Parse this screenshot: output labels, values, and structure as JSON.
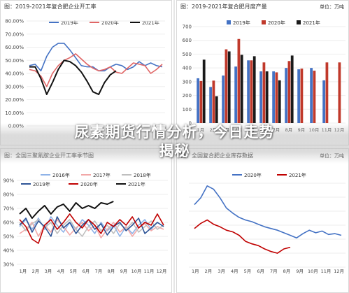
{
  "overlay": {
    "line1": "尿素期货行情分析，今日走势",
    "line2": "揭秘"
  },
  "colors": {
    "frame": "#d9d9d9",
    "text": "#333333",
    "grid": "#eeeeee"
  },
  "chart_data": [
    {
      "type": "line",
      "title": "图：2019-2021年复合肥企业开工率",
      "yticks": [
        "80.00%",
        "70.00%",
        "60.00%",
        "50.00%",
        "40.00%",
        "30.00%",
        "20.00%",
        "10.00%",
        "0.00%"
      ],
      "ylim": [
        0,
        80
      ],
      "legend_placement": "top",
      "series": [
        {
          "name": "2019年",
          "color": "#4472c4",
          "values": [
            46,
            47,
            42,
            53,
            60,
            63,
            63,
            58,
            52,
            46,
            45,
            45,
            42,
            42,
            45,
            47,
            46,
            43,
            45,
            49,
            46,
            48,
            46,
            45
          ]
        },
        {
          "name": "2020年",
          "color": "#e06666",
          "values": [
            43,
            42,
            38,
            30,
            40,
            46,
            50,
            52,
            55,
            51,
            47,
            44,
            42,
            43,
            45,
            41,
            40,
            44,
            48,
            47,
            46,
            40,
            43,
            47
          ]
        },
        {
          "name": "2021年",
          "color": "#111111",
          "values": [
            45,
            45,
            36,
            24,
            33,
            43,
            50,
            49,
            46,
            41,
            34,
            26,
            24,
            33,
            39,
            42,
            null,
            null,
            null,
            null,
            null,
            null,
            null,
            null
          ]
        }
      ]
    },
    {
      "type": "bar",
      "title": "图：2019-2021年复合肥月度产量",
      "unit": "单位：万吨",
      "categories": [
        "1月",
        "2月",
        "3月",
        "4月",
        "5月",
        "6月",
        "7月",
        "8月",
        "9月",
        "10月",
        "11月",
        "12月"
      ],
      "yticks": [
        "700",
        "600",
        "500",
        "400",
        "300",
        "200",
        "100",
        "0"
      ],
      "ylim": [
        0,
        700
      ],
      "legend_placement": "top",
      "series": [
        {
          "name": "2019年",
          "color": "#4472c4",
          "values": [
            325,
            262,
            345,
            410,
            455,
            375,
            375,
            400,
            390,
            400,
            310,
            0
          ]
        },
        {
          "name": "2020年",
          "color": "#c0392b",
          "values": [
            305,
            308,
            535,
            610,
            455,
            440,
            368,
            450,
            395,
            380,
            440,
            440
          ]
        },
        {
          "name": "2021年",
          "color": "#1a1a1a",
          "values": [
            460,
            195,
            520,
            495,
            485,
            375,
            310,
            490,
            0,
            0,
            0,
            0
          ]
        }
      ]
    },
    {
      "type": "line",
      "title": "图：全国三聚氰胺企业开工率季节图",
      "yticks": [
        "90%",
        "80%",
        "70%",
        "60%",
        "50%",
        "40%",
        "30%"
      ],
      "ylim": [
        30,
        90
      ],
      "xticks": [
        "1月",
        "2月",
        "3月",
        "4月",
        "5月",
        "6月",
        "7月",
        "8月",
        "9月",
        "10月",
        "11月",
        "12月"
      ],
      "legend_placement": "top",
      "series": [
        {
          "name": "2016年",
          "color": "#8fb3e8",
          "values": [
            57,
            62,
            55,
            63,
            55,
            64,
            58,
            53,
            60,
            55,
            62,
            58,
            52,
            60,
            54,
            58,
            50,
            57,
            52,
            58,
            62,
            55,
            60,
            57
          ]
        },
        {
          "name": "2017年",
          "color": "#f2a8a8",
          "values": [
            52,
            55,
            60,
            50,
            58,
            53,
            62,
            57,
            51,
            56,
            60,
            54,
            58,
            49,
            55,
            60,
            53,
            57,
            50,
            56,
            59,
            54,
            57,
            55
          ]
        },
        {
          "name": "2018年",
          "color": "#bfbfbf",
          "values": [
            60,
            54,
            59,
            62,
            56,
            60,
            52,
            58,
            62,
            55,
            50,
            57,
            61,
            54,
            58,
            52,
            59,
            55,
            60,
            53,
            57,
            61,
            55,
            58
          ]
        },
        {
          "name": "2019年",
          "color": "#2f5597",
          "values": [
            58,
            63,
            53,
            61,
            57,
            50,
            64,
            56,
            60,
            52,
            58,
            62,
            55,
            59,
            51,
            57,
            60,
            54,
            58,
            63,
            52,
            56,
            60,
            57
          ]
        },
        {
          "name": "2020年",
          "color": "#c00000",
          "values": [
            62,
            57,
            48,
            45,
            58,
            62,
            55,
            60,
            66,
            60,
            56,
            62,
            58,
            52,
            60,
            57,
            62,
            58,
            64,
            56,
            60,
            58,
            66,
            58
          ]
        },
        {
          "name": "2021年",
          "color": "#111111",
          "values": [
            66,
            70,
            63,
            68,
            72,
            66,
            71,
            73,
            68,
            74,
            70,
            72,
            70,
            74,
            73,
            75,
            null,
            null,
            null,
            null,
            null,
            null,
            null,
            null
          ]
        }
      ]
    },
    {
      "type": "line",
      "title": "图：全国复合肥企业库存数据",
      "unit": "单位：万吨",
      "xticks": [
        "1月",
        "2月",
        "3月",
        "4月",
        "5月",
        "6月",
        "7月",
        "8月",
        "9月",
        "10月",
        "11月",
        "12月"
      ],
      "legend_placement": "top",
      "series": [
        {
          "name": "2020年",
          "color": "#4472c4",
          "values": [
            70,
            78,
            92,
            88,
            78,
            66,
            60,
            55,
            52,
            50,
            47,
            44,
            42,
            40,
            37,
            34,
            31,
            36,
            40,
            37,
            39,
            35,
            36,
            34
          ]
        },
        {
          "name": "2021年",
          "color": "#c00000",
          "values": [
            42,
            48,
            52,
            47,
            44,
            40,
            38,
            34,
            27,
            24,
            22,
            18,
            15,
            13,
            18,
            20,
            null,
            null,
            null,
            null,
            null,
            null,
            null,
            null
          ]
        }
      ]
    }
  ]
}
